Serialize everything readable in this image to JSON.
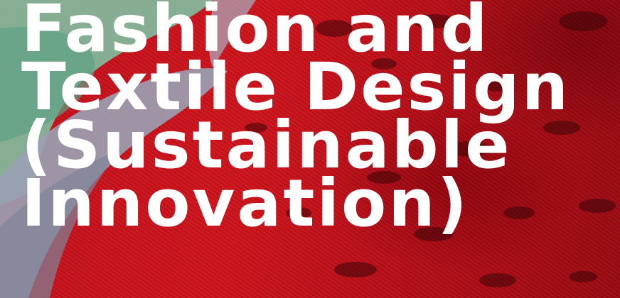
{
  "hero": {
    "title_lines": [
      "Fashion and",
      "Textile Design",
      "(Sustainable",
      "Innovation)"
    ]
  },
  "colors": {
    "fabric_red": "#c8141f",
    "green_bangle": "#7fbfa0",
    "grey_bangle": "#9a9fb2",
    "headline": "#ffffff"
  }
}
